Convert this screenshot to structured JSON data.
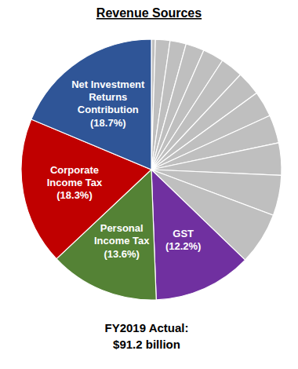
{
  "chart_data": {
    "type": "pie",
    "title": "Revenue Sources",
    "categories": [
      null,
      null,
      null,
      null,
      null,
      null,
      null,
      null,
      null,
      null,
      null,
      null,
      "GST",
      "Personal Income Tax",
      "Corporate Income Tax",
      "Net Investment Returns Contribution"
    ],
    "values": [
      0.5,
      1.8,
      2.0,
      2.3,
      2.6,
      2.8,
      3.0,
      3.2,
      3.5,
      4.0,
      5.0,
      6.5,
      12.2,
      13.6,
      18.3,
      18.7
    ],
    "value_labels": [
      null,
      null,
      null,
      null,
      null,
      null,
      null,
      null,
      null,
      null,
      null,
      null,
      "(12.2%)",
      "(13.6%)",
      "(18.3%)",
      "(18.7%)"
    ],
    "colors": [
      "#bfbfbf",
      "#bfbfbf",
      "#bfbfbf",
      "#bfbfbf",
      "#bfbfbf",
      "#bfbfbf",
      "#bfbfbf",
      "#bfbfbf",
      "#bfbfbf",
      "#bfbfbf",
      "#bfbfbf",
      "#bfbfbf",
      "#7030a0",
      "#548235",
      "#c00000",
      "#2f5597"
    ],
    "data_labels": true,
    "annotations": [
      "FY2019 Actual:",
      "$91.2 billion"
    ]
  }
}
